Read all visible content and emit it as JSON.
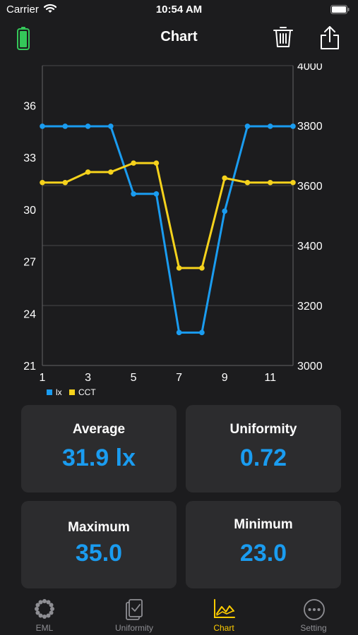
{
  "status_bar": {
    "carrier": "Carrier",
    "time": "10:54 AM"
  },
  "nav": {
    "title": "Chart"
  },
  "chart_data": {
    "type": "line",
    "x": [
      1,
      2,
      3,
      4,
      5,
      6,
      7,
      8,
      9,
      10,
      11,
      12
    ],
    "x_ticks": [
      "1",
      "3",
      "5",
      "7",
      "9",
      "11"
    ],
    "xlim": [
      1,
      12
    ],
    "left_axis": {
      "ticks": [
        "21",
        "24",
        "27",
        "30",
        "33",
        "36"
      ],
      "ylim": [
        21,
        38.3
      ]
    },
    "right_axis": {
      "ticks": [
        "3000",
        "3200",
        "3400",
        "3600",
        "3800",
        "4000"
      ],
      "ylim": [
        3000,
        4000
      ]
    },
    "series": [
      {
        "name": "lx",
        "axis": "left",
        "color": "#1a9cf0",
        "values": [
          34.8,
          34.8,
          34.8,
          34.8,
          30.9,
          30.9,
          22.9,
          22.9,
          29.9,
          34.8,
          34.8,
          34.8
        ]
      },
      {
        "name": "CCT",
        "axis": "right",
        "color": "#f5d21c",
        "values": [
          3610,
          3610,
          3645,
          3645,
          3675,
          3675,
          3325,
          3325,
          3625,
          3610,
          3610,
          3610
        ]
      }
    ],
    "grid": "horizontal",
    "legend": "bottom-left"
  },
  "stats": {
    "average": {
      "label": "Average",
      "value": "31.9 lx"
    },
    "uniformity": {
      "label": "Uniformity",
      "value": "0.72"
    },
    "maximum": {
      "label": "Maximum",
      "value": "35.0"
    },
    "minimum": {
      "label": "Minimum",
      "value": "23.0"
    }
  },
  "tabs": [
    {
      "label": "EML",
      "icon": "eml-dots-icon",
      "active": false
    },
    {
      "label": "Uniformity",
      "icon": "uniformity-clipboard-icon",
      "active": false
    },
    {
      "label": "Chart",
      "icon": "chart-line-icon",
      "active": true
    },
    {
      "label": "Setting",
      "icon": "setting-more-icon",
      "active": false
    }
  ],
  "colors": {
    "background": "#1c1c1e",
    "card": "#2c2c2e",
    "accent_blue": "#1a9cf0",
    "accent_yellow": "#f5d21c",
    "tab_active": "#ffcc00",
    "battery_green": "#34c759"
  }
}
